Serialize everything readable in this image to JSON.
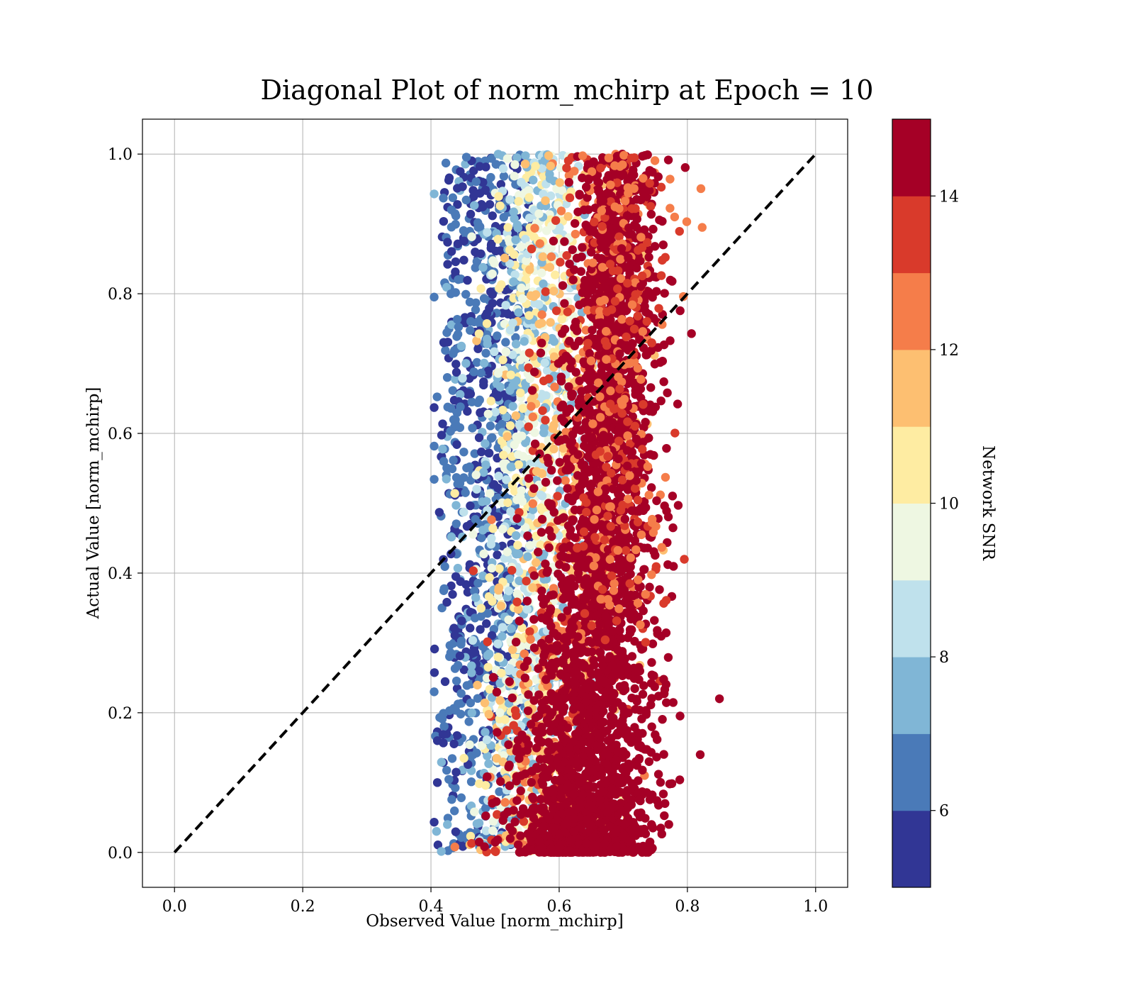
{
  "chart_data": {
    "type": "scatter",
    "title": "Diagonal Plot of norm_mchirp at Epoch = 10",
    "xlabel": "Observed Value [norm_mchirp]",
    "ylabel": "Actual Value [norm_mchirp]",
    "xlim": [
      -0.05,
      1.05
    ],
    "ylim": [
      -0.05,
      1.05
    ],
    "xticks": [
      0.0,
      0.2,
      0.4,
      0.6,
      0.8,
      1.0
    ],
    "xtick_labels": [
      "0.0",
      "0.2",
      "0.4",
      "0.6",
      "0.8",
      "1.0"
    ],
    "yticks": [
      0.0,
      0.2,
      0.4,
      0.6,
      0.8,
      1.0
    ],
    "ytick_labels": [
      "0.0",
      "0.2",
      "0.4",
      "0.6",
      "0.8",
      "1.0"
    ],
    "grid": true,
    "reference_line": {
      "x": [
        0.0,
        1.0
      ],
      "y": [
        0.0,
        1.0
      ],
      "style": "dashed",
      "color": "#000000"
    },
    "colorbar": {
      "label": "Network SNR",
      "range": [
        5,
        15
      ],
      "ticks": [
        6,
        8,
        10,
        12,
        14
      ],
      "tick_labels": [
        "6",
        "8",
        "10",
        "12",
        "14"
      ],
      "bins": 10,
      "colors": [
        "#313695",
        "#4a7ab8",
        "#80b6d6",
        "#bfe1ec",
        "#eef7e2",
        "#feeca2",
        "#fdbf71",
        "#f57d4a",
        "#d93a2b",
        "#a50026"
      ]
    },
    "series_summary": [
      {
        "snr_band": "low (5-7)",
        "x_range": [
          0.41,
          0.55
        ],
        "y_range": [
          0.0,
          1.0
        ]
      },
      {
        "snr_band": "mid (7-11)",
        "x_range": [
          0.42,
          0.64
        ],
        "y_range": [
          0.0,
          1.0
        ]
      },
      {
        "snr_band": "high (11-15)",
        "x_range": [
          0.5,
          0.85
        ],
        "y_range": [
          0.0,
          1.0
        ],
        "dense_core_x": [
          0.6,
          0.74
        ]
      }
    ],
    "outliers": [
      {
        "x": 0.85,
        "y": 0.22
      },
      {
        "x": 0.82,
        "y": 0.14
      },
      {
        "x": 0.42,
        "y": 0.73
      },
      {
        "x": 0.41,
        "y": 0.16
      },
      {
        "x": 0.41,
        "y": 0.1
      }
    ]
  }
}
